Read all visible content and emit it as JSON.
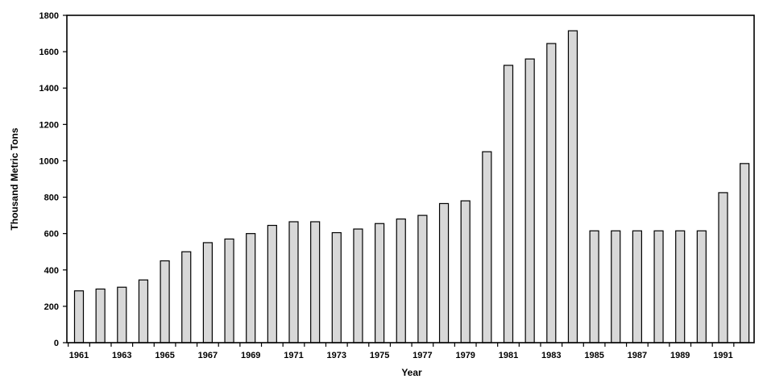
{
  "chart_data": {
    "type": "bar",
    "title": "",
    "xlabel": "Year",
    "ylabel": "Thousand Metric Tons",
    "ylim": [
      0,
      1800
    ],
    "y_ticks": [
      0,
      200,
      400,
      600,
      800,
      1000,
      1200,
      1400,
      1600,
      1800
    ],
    "x_tick_labels": [
      "1961",
      "1963",
      "1965",
      "1967",
      "1969",
      "1971",
      "1973",
      "1975",
      "1977",
      "1979",
      "1981",
      "1983",
      "1985",
      "1987",
      "1989",
      "1991"
    ],
    "grid": false,
    "legend": "none",
    "bar_color": "#d8d8d8",
    "categories": [
      "1961",
      "1962",
      "1963",
      "1964",
      "1965",
      "1966",
      "1967",
      "1968",
      "1969",
      "1970",
      "1971",
      "1972",
      "1973",
      "1974",
      "1975",
      "1976",
      "1977",
      "1978",
      "1979",
      "1980",
      "1981",
      "1982",
      "1983",
      "1984",
      "1985",
      "1986",
      "1987",
      "1988",
      "1989",
      "1990",
      "1991",
      "1992"
    ],
    "values": [
      285,
      295,
      305,
      345,
      450,
      500,
      550,
      570,
      600,
      645,
      665,
      665,
      605,
      625,
      655,
      680,
      700,
      765,
      780,
      1050,
      1525,
      1560,
      1645,
      1715,
      615,
      615,
      615,
      615,
      615,
      615,
      825,
      985
    ]
  }
}
